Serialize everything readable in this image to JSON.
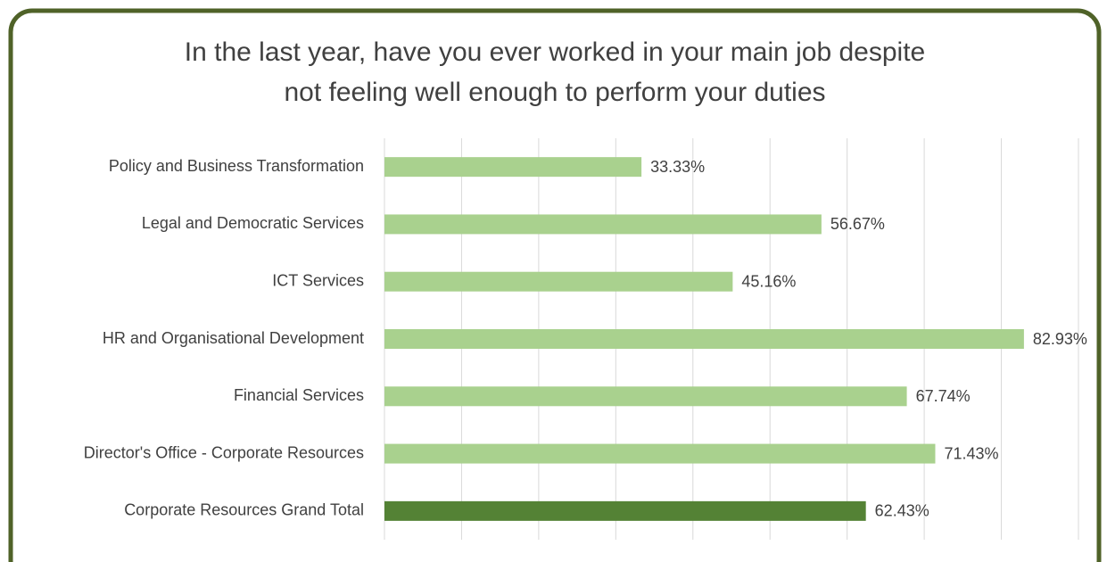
{
  "chart_data": {
    "type": "barh",
    "title": [
      "In the last year, have you ever worked in your main job despite",
      "not feeling well enough to perform your duties"
    ],
    "categories": [
      "Policy and Business Transformation",
      "Legal and Democratic Services",
      "ICT Services",
      "HR and Organisational Development",
      "Financial Services",
      "Director's Office - Corporate Resources",
      "Corporate Resources Grand Total"
    ],
    "values": [
      33.33,
      56.67,
      45.16,
      82.93,
      67.74,
      71.43,
      62.43
    ],
    "value_labels": [
      "33.33%",
      "56.67%",
      "45.16%",
      "82.93%",
      "67.74%",
      "71.43%",
      "62.43%"
    ],
    "colors": [
      "#a9d18e",
      "#a9d18e",
      "#a9d18e",
      "#a9d18e",
      "#a9d18e",
      "#a9d18e",
      "#548235"
    ],
    "xlim": [
      0,
      90
    ],
    "xticks": [
      0,
      10,
      20,
      30,
      40,
      50,
      60,
      70,
      80,
      90
    ],
    "grid": true
  }
}
